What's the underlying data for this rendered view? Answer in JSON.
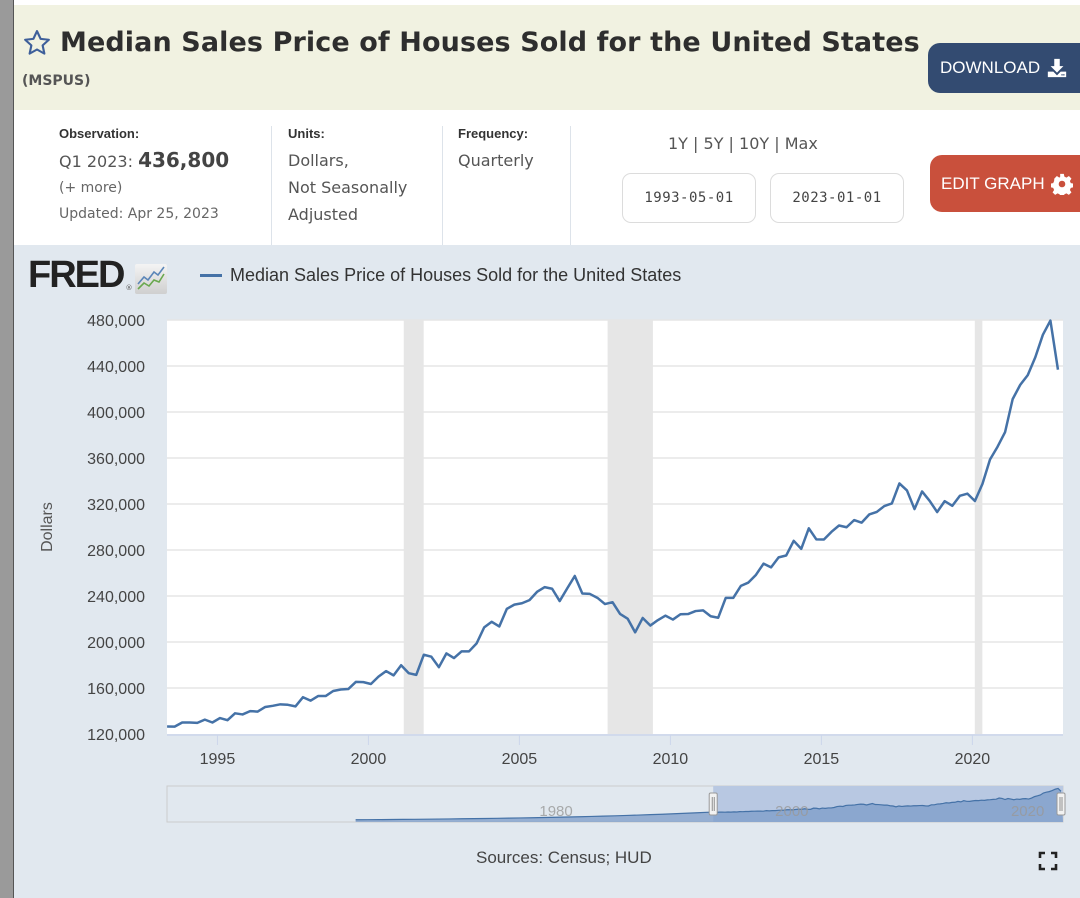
{
  "header": {
    "title": "Median Sales Price of Houses Sold for the United States",
    "series_id": "(MSPUS)",
    "download_label": "DOWNLOAD",
    "edit_graph_label": "EDIT GRAPH",
    "colors": {
      "download": "#334b71",
      "edit_graph": "#c9503c",
      "header_bg": "#f1f2e1"
    }
  },
  "info": {
    "observation_label": "Observation:",
    "observation_period": "Q1 2023:",
    "observation_value": "436,800",
    "more_link": "(+ more)",
    "updated": "Updated: Apr 25, 2023",
    "units_label": "Units:",
    "units_lines": [
      "Dollars,",
      "Not Seasonally",
      "Adjusted"
    ],
    "frequency_label": "Frequency:",
    "frequency_value": "Quarterly",
    "range_links": [
      "1Y",
      "5Y",
      "10Y",
      "Max"
    ],
    "start_date": "1993-05-01",
    "end_date": "2023-01-01"
  },
  "chart_header": {
    "logo": "FRED",
    "legend_label": "Median Sales Price of Houses Sold for the United States"
  },
  "footer": {
    "sources": "Sources: Census; HUD"
  },
  "navigator": {
    "tick_labels": [
      "1980",
      "2000",
      "2020"
    ],
    "selected_range": [
      "1993-05-01",
      "2023-01-01"
    ]
  },
  "chart_data": {
    "type": "line",
    "title": "Median Sales Price of Houses Sold for the United States",
    "xlabel": "",
    "ylabel": "Dollars",
    "ylim": [
      120000,
      480000
    ],
    "xlim": [
      1993.33,
      2023.0
    ],
    "yticks": [
      120000,
      160000,
      200000,
      240000,
      280000,
      320000,
      360000,
      400000,
      440000,
      480000
    ],
    "ytick_labels": [
      "120,000",
      "160,000",
      "200,000",
      "240,000",
      "280,000",
      "320,000",
      "360,000",
      "400,000",
      "440,000",
      "480,000"
    ],
    "xticks": [
      1995,
      2000,
      2005,
      2010,
      2015,
      2020
    ],
    "xtick_labels": [
      "1995",
      "2000",
      "2005",
      "2010",
      "2015",
      "2020"
    ],
    "grid": true,
    "legend": "top-left",
    "line_color": "#4572a7",
    "recessions": [
      {
        "start": 2001.17,
        "end": 2001.83
      },
      {
        "start": 2007.92,
        "end": 2009.42
      },
      {
        "start": 2020.08,
        "end": 2020.33
      }
    ],
    "series": [
      {
        "name": "Median Sales Price of Houses Sold for the United States",
        "start": "1993 Q2",
        "frequency": "quarterly",
        "values": [
          126500,
          126400,
          130000,
          130000,
          129700,
          132500,
          130000,
          133900,
          132000,
          138000,
          137000,
          139900,
          139500,
          143500,
          144500,
          145800,
          145400,
          144000,
          152000,
          149000,
          153000,
          153000,
          157400,
          158700,
          159100,
          165300,
          165100,
          163500,
          169900,
          174700,
          171000,
          179800,
          172900,
          171400,
          188900,
          187200,
          178100,
          190100,
          186000,
          191800,
          191900,
          198800,
          212700,
          217600,
          213500,
          228800,
          232500,
          233700,
          236400,
          243600,
          247700,
          246300,
          235600,
          246600,
          257400,
          242200,
          241800,
          238400,
          233000,
          234600,
          224400,
          220300,
          208400,
          220900,
          214300,
          219000,
          222900,
          219500,
          224100,
          224300,
          226900,
          227500,
          222400,
          221100,
          238400,
          238400,
          248800,
          251700,
          258400,
          268100,
          264900,
          273600,
          275200,
          288000,
          281000,
          298900,
          289200,
          289100,
          295800,
          301300,
          299800,
          306000,
          303800,
          310900,
          313100,
          318200,
          320500,
          337900,
          331800,
          315600,
          330900,
          322800,
          313000,
          322500,
          318400,
          327100,
          329000,
          322600,
          337500,
          358700,
          369800,
          382600,
          411200,
          423600,
          432100,
          447600,
          467100,
          479500,
          436800
        ]
      }
    ]
  }
}
